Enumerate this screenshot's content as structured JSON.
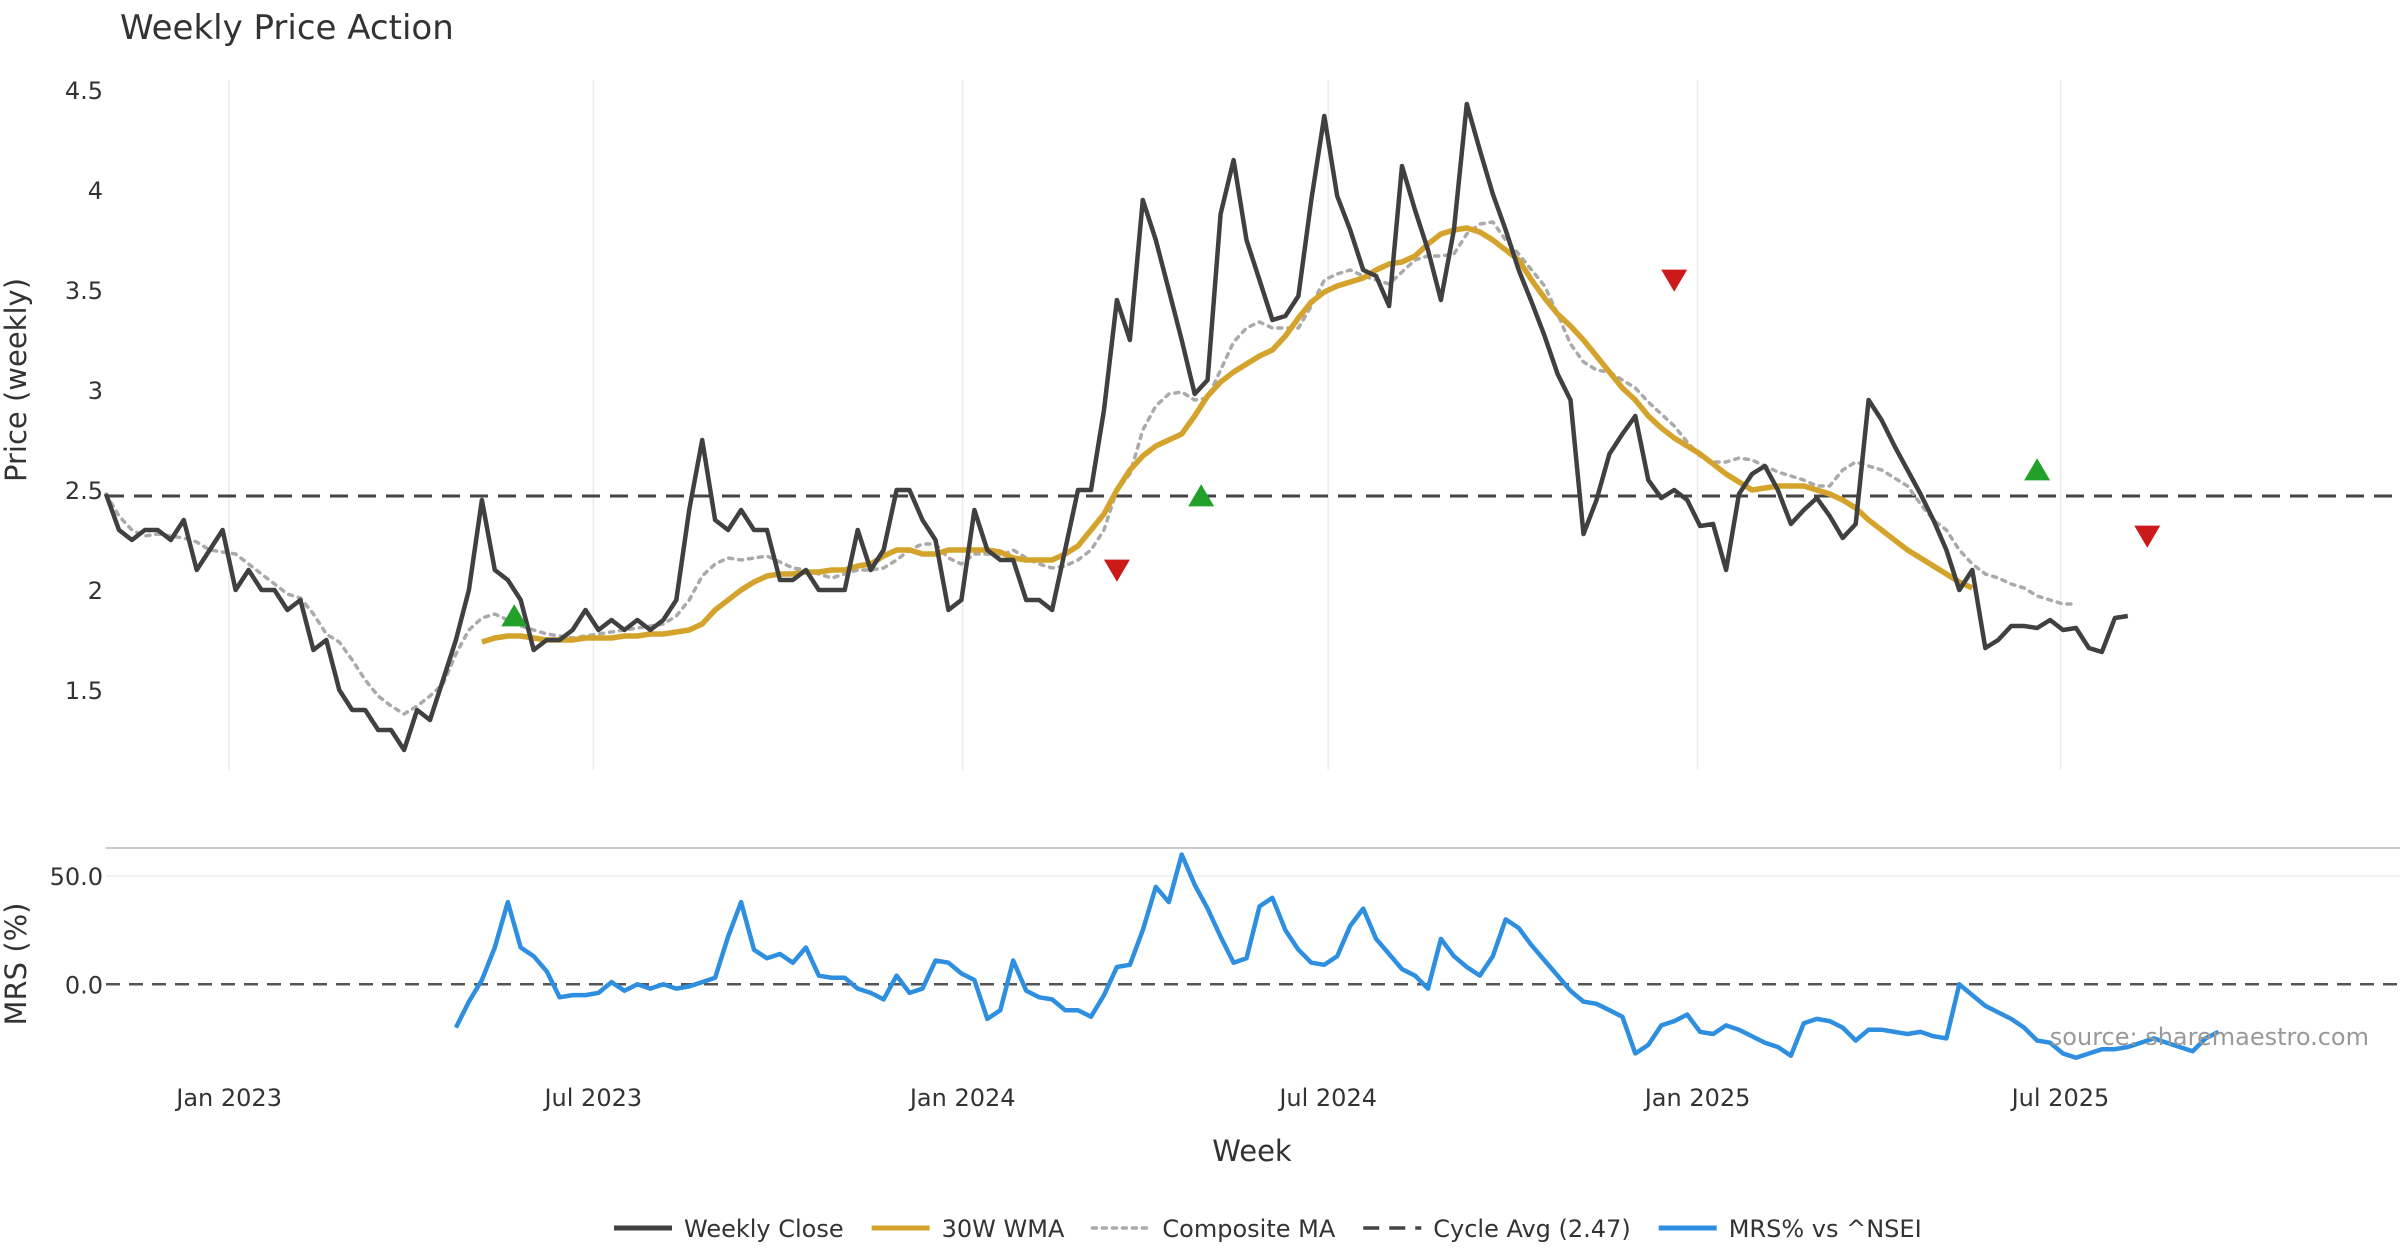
{
  "chart_data": [
    {
      "type": "line",
      "title": "Weekly Price Action",
      "xlabel": "Week",
      "ylabel": "Price (weekly)",
      "ylim": [
        1.1,
        4.55
      ],
      "yticks": [
        1.5,
        2,
        2.5,
        3,
        3.5,
        4,
        4.5
      ],
      "ytick_labels": [
        "1.5",
        "2",
        "2.5",
        "3",
        "3.5",
        "4",
        "4.5"
      ],
      "x_start_week": 0,
      "x_end_week": 177,
      "xticks": [
        {
          "week": 9.5,
          "label": "Jan 2023"
        },
        {
          "week": 37.6,
          "label": "Jul 2023"
        },
        {
          "week": 66.1,
          "label": "Jan 2024"
        },
        {
          "week": 94.3,
          "label": "Jul 2024"
        },
        {
          "week": 122.8,
          "label": "Jan 2025"
        },
        {
          "week": 150.8,
          "label": "Jul 2025"
        }
      ],
      "series": [
        {
          "name": "Weekly Close",
          "color": "#404040",
          "values": [
            2.48,
            2.3,
            2.25,
            2.3,
            2.3,
            2.25,
            2.35,
            2.1,
            2.2,
            2.3,
            2.0,
            2.1,
            2.0,
            2.0,
            1.9,
            1.95,
            1.7,
            1.75,
            1.5,
            1.4,
            1.4,
            1.3,
            1.3,
            1.2,
            1.4,
            1.35,
            1.55,
            1.75,
            2.0,
            2.45,
            2.1,
            2.05,
            1.95,
            1.7,
            1.75,
            1.75,
            1.8,
            1.9,
            1.8,
            1.85,
            1.8,
            1.85,
            1.8,
            1.85,
            1.95,
            2.4,
            2.75,
            2.35,
            2.3,
            2.4,
            2.3,
            2.3,
            2.05,
            2.05,
            2.1,
            2.0,
            2.0,
            2.0,
            2.3,
            2.1,
            2.2,
            2.5,
            2.5,
            2.35,
            2.25,
            1.9,
            1.95,
            2.4,
            2.2,
            2.15,
            2.15,
            1.95,
            1.95,
            1.9,
            2.2,
            2.5,
            2.5,
            2.9,
            3.45,
            3.25,
            3.95,
            3.75,
            3.5,
            3.25,
            2.98,
            3.05,
            3.88,
            4.15,
            3.75,
            3.55,
            3.35,
            3.37,
            3.47,
            3.95,
            4.37,
            3.97,
            3.8,
            3.6,
            3.57,
            3.42,
            4.12,
            3.9,
            3.7,
            3.45,
            3.8,
            4.43,
            4.2,
            3.98,
            3.8,
            3.6,
            3.44,
            3.27,
            3.08,
            2.95,
            2.28,
            2.45,
            2.68,
            2.78,
            2.87,
            2.55,
            2.46,
            2.5,
            2.45,
            2.32,
            2.33,
            2.1,
            2.48,
            2.58,
            2.62,
            2.5,
            2.33,
            2.4,
            2.46,
            2.37,
            2.26,
            2.33,
            2.95,
            2.85,
            2.72,
            2.6,
            2.48,
            2.35,
            2.2,
            2.0,
            2.1,
            1.71,
            1.75,
            1.82,
            1.82,
            1.81,
            1.85,
            1.8,
            1.81,
            1.71,
            1.69,
            1.86,
            1.87
          ]
        },
        {
          "name": "30W WMA",
          "color": "#D4A32C",
          "start_week": 29,
          "values": [
            1.74,
            1.76,
            1.77,
            1.77,
            1.76,
            1.75,
            1.75,
            1.75,
            1.76,
            1.76,
            1.76,
            1.77,
            1.77,
            1.78,
            1.78,
            1.79,
            1.8,
            1.83,
            1.9,
            1.95,
            2.0,
            2.04,
            2.07,
            2.08,
            2.08,
            2.09,
            2.09,
            2.1,
            2.1,
            2.12,
            2.13,
            2.17,
            2.2,
            2.2,
            2.18,
            2.18,
            2.2,
            2.2,
            2.2,
            2.2,
            2.19,
            2.16,
            2.15,
            2.15,
            2.15,
            2.18,
            2.22,
            2.3,
            2.38,
            2.5,
            2.6,
            2.67,
            2.72,
            2.75,
            2.78,
            2.87,
            2.97,
            3.04,
            3.09,
            3.13,
            3.17,
            3.2,
            3.27,
            3.36,
            3.44,
            3.49,
            3.52,
            3.54,
            3.56,
            3.6,
            3.63,
            3.64,
            3.67,
            3.73,
            3.78,
            3.8,
            3.81,
            3.79,
            3.75,
            3.7,
            3.65,
            3.55,
            3.46,
            3.38,
            3.32,
            3.25,
            3.17,
            3.09,
            3.01,
            2.95,
            2.87,
            2.81,
            2.76,
            2.72,
            2.68,
            2.63,
            2.58,
            2.54,
            2.5,
            2.51,
            2.52,
            2.52,
            2.52,
            2.5,
            2.48,
            2.45,
            2.41,
            2.35,
            2.3,
            2.25,
            2.2,
            2.16,
            2.12,
            2.08,
            2.04,
            2.01
          ]
        },
        {
          "name": "Composite MA",
          "color": "#AAAAAA",
          "values": [
            2.48,
            2.37,
            2.3,
            2.27,
            2.28,
            2.27,
            2.26,
            2.24,
            2.2,
            2.19,
            2.18,
            2.13,
            2.08,
            2.03,
            1.98,
            1.96,
            1.88,
            1.78,
            1.74,
            1.65,
            1.55,
            1.47,
            1.42,
            1.38,
            1.42,
            1.47,
            1.53,
            1.68,
            1.8,
            1.86,
            1.88,
            1.85,
            1.82,
            1.8,
            1.78,
            1.77,
            1.76,
            1.77,
            1.78,
            1.79,
            1.8,
            1.81,
            1.82,
            1.83,
            1.87,
            1.95,
            2.07,
            2.13,
            2.16,
            2.15,
            2.16,
            2.17,
            2.14,
            2.11,
            2.1,
            2.08,
            2.06,
            2.08,
            2.1,
            2.1,
            2.11,
            2.15,
            2.2,
            2.23,
            2.23,
            2.16,
            2.13,
            2.18,
            2.18,
            2.17,
            2.2,
            2.16,
            2.13,
            2.11,
            2.12,
            2.15,
            2.2,
            2.3,
            2.5,
            2.58,
            2.8,
            2.92,
            2.98,
            2.99,
            2.95,
            2.96,
            3.1,
            3.24,
            3.31,
            3.34,
            3.31,
            3.31,
            3.31,
            3.42,
            3.55,
            3.58,
            3.6,
            3.57,
            3.55,
            3.53,
            3.59,
            3.65,
            3.67,
            3.67,
            3.68,
            3.78,
            3.83,
            3.84,
            3.75,
            3.68,
            3.6,
            3.52,
            3.38,
            3.23,
            3.14,
            3.1,
            3.09,
            3.05,
            3.01,
            2.94,
            2.88,
            2.82,
            2.74,
            2.67,
            2.64,
            2.64,
            2.66,
            2.65,
            2.62,
            2.59,
            2.57,
            2.55,
            2.52,
            2.52,
            2.6,
            2.64,
            2.62,
            2.6,
            2.56,
            2.52,
            2.43,
            2.35,
            2.3,
            2.2,
            2.13,
            2.08,
            2.06,
            2.03,
            2.01,
            1.97,
            1.95,
            1.93,
            1.93
          ]
        },
        {
          "name": "Cycle Avg (2.47)",
          "color": "#444444",
          "value": 2.47
        }
      ],
      "markers": [
        {
          "type": "buy",
          "week": 31.5,
          "value": 1.87,
          "color": "#22A02A"
        },
        {
          "type": "sell",
          "week": 78,
          "value": 2.1,
          "color": "#CC1A1A"
        },
        {
          "type": "buy",
          "week": 84.5,
          "value": 2.47,
          "color": "#22A02A"
        },
        {
          "type": "sell",
          "week": 121,
          "value": 3.55,
          "color": "#CC1A1A"
        },
        {
          "type": "buy",
          "week": 149,
          "value": 2.6,
          "color": "#22A02A"
        },
        {
          "type": "sell",
          "week": 157.5,
          "value": 2.27,
          "color": "#CC1A1A"
        }
      ]
    },
    {
      "type": "line",
      "ylabel": "MRS (%)",
      "ylim": [
        -35,
        63
      ],
      "yticks": [
        0,
        50
      ],
      "ytick_labels": [
        "0.0",
        "50.0"
      ],
      "series": [
        {
          "name": "MRS% vs ^NSEI",
          "color": "#2E8FE0",
          "start_week": 27,
          "values": [
            -20,
            -8,
            2,
            17,
            38,
            17,
            13,
            6,
            -6,
            -5,
            -5,
            -4,
            1,
            -3,
            0,
            -2,
            0,
            -2,
            -1,
            1,
            3,
            22,
            38,
            16,
            12,
            14,
            10,
            17,
            4,
            3,
            3,
            -2,
            -4,
            -7,
            4,
            -4,
            -2,
            11,
            10,
            5,
            2,
            -16,
            -12,
            11,
            -3,
            -6,
            -7,
            -12,
            -12,
            -15,
            -5,
            8,
            9,
            25,
            45,
            38,
            60,
            46,
            35,
            22,
            10,
            12,
            36,
            40,
            25,
            16,
            10,
            9,
            13,
            27,
            35,
            21,
            14,
            7,
            4,
            -2,
            21,
            13,
            8,
            4,
            13,
            30,
            26,
            18,
            11,
            4,
            -3,
            -8,
            -9,
            -12,
            -15,
            -32,
            -28,
            -19,
            -17,
            -14,
            -22,
            -23,
            -19,
            -21,
            -24,
            -27,
            -29,
            -33,
            -18,
            -16,
            -17,
            -20,
            -26,
            -21,
            -21,
            -22,
            -23,
            -22,
            -24,
            -25,
            0,
            -5,
            -10,
            -13,
            -16,
            -20,
            -26,
            -27,
            -32,
            -34,
            -32,
            -30,
            -30,
            -29,
            -27,
            -25,
            -27,
            -29,
            -31,
            -25,
            -22
          ]
        },
        {
          "name": "zero line",
          "value": 0
        }
      ]
    }
  ],
  "legend": {
    "items": [
      {
        "label": "Weekly Close",
        "style": "solid",
        "color": "#404040"
      },
      {
        "label": "30W WMA",
        "style": "solid",
        "color": "#D4A32C"
      },
      {
        "label": "Composite MA",
        "style": "dotted",
        "color": "#AAAAAA"
      },
      {
        "label": "Cycle Avg (2.47)",
        "style": "dashed",
        "color": "#444444"
      },
      {
        "label": "MRS% vs ^NSEI",
        "style": "solid",
        "color": "#2E8FE0"
      }
    ]
  },
  "watermark": "source: sharemaestro.com"
}
